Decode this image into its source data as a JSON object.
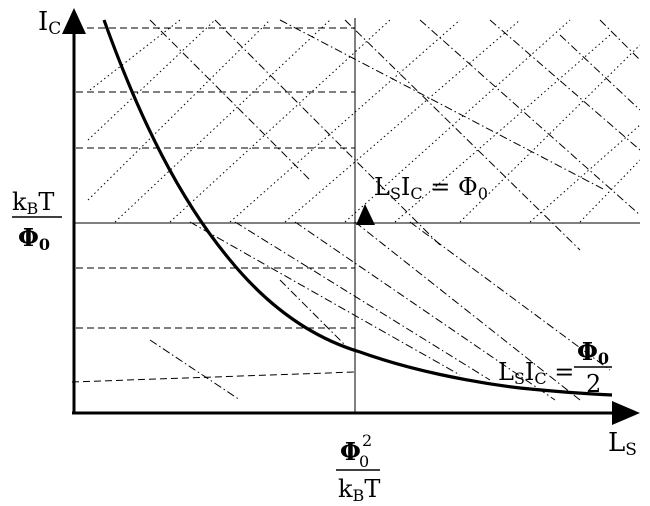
{
  "axes": {
    "y_label": {
      "main": "I",
      "sub": "C"
    },
    "x_label": {
      "main": "L",
      "sub": "S"
    }
  },
  "y_marker": {
    "numerator": {
      "main": "k",
      "sub": "B",
      "tail": "T"
    },
    "denominator": {
      "main": "Φ",
      "sub": "0"
    }
  },
  "x_marker": {
    "numerator": {
      "main": "Φ",
      "sub": "0",
      "sup": "2"
    },
    "denominator": {
      "main": "k",
      "sub": "B",
      "tail": "T"
    }
  },
  "annotations": {
    "upper": {
      "l": "L",
      "l_sub": "S",
      "i": "I",
      "i_sub": "C",
      "eq": " = Φ",
      "eq_sub": "0"
    },
    "lower": {
      "l": "L",
      "l_sub": "S",
      "i": "I",
      "i_sub": "C",
      "eq": " = ",
      "frac_num": "Φ",
      "frac_num_sub": "0",
      "frac_den": "2"
    }
  }
}
